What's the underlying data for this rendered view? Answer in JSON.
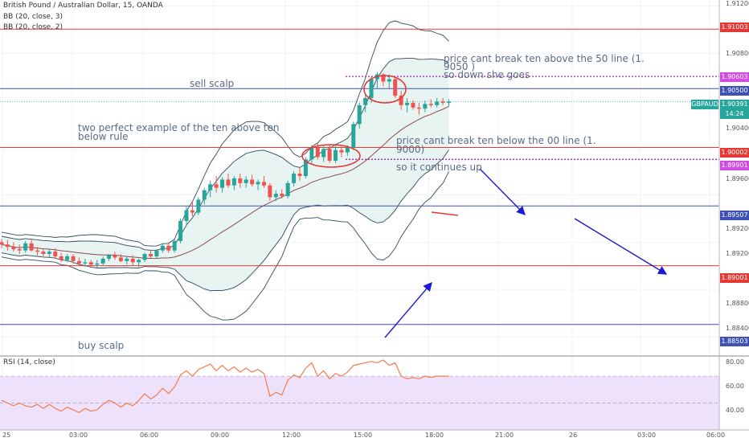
{
  "header": {
    "symbol_line": "British Pound / Australian Dollar, 15, OANDA",
    "bb1": "BB (20, close, 3)",
    "bb2": "BB (20, close, 2)",
    "rsi_label": "RSI (14, close)"
  },
  "annotations": {
    "sell_scalp": "sell scalp",
    "buy_scalp": "buy scalp",
    "ten_rule_1": "two perfect example of the ten above ten",
    "ten_rule_2": "below rule",
    "break50_1": "price cant break ten above the 50 line (1.",
    "break50_2": "9050 )",
    "break50_3": "so down she goes",
    "break00_1": "price cant break ten below the  00 line (1.",
    "break00_2": "9000)",
    "break00_3": "so it continues up"
  },
  "price_labels": {
    "symbol": "GBPAUD",
    "last": "1.90391",
    "countdown": "14:24",
    "l91003": "1.91003",
    "l90603": "1.90603",
    "l90500": "1.90500",
    "l90002": "1.90002",
    "l89901": "1.89901",
    "l89507": "1.89507",
    "l89001": "1.89001",
    "l88503": "1.88503"
  },
  "colors": {
    "bull": "#26a69a",
    "bear": "#ef5350",
    "red_line": "#e53935",
    "blue_line": "#3f51b5",
    "dotted": "#9c27b0",
    "arrow": "#1a1ad6",
    "rsi_line": "#f57c4a",
    "rsi_band": "#ede1fb",
    "bb_fill": "#e8f4f2"
  },
  "chart_data": {
    "type": "candlestick",
    "title": "British Pound / Australian Dollar, 15, OANDA",
    "y_axis_ticks": [
      "1.91200",
      "1.90800",
      "1.90400",
      "1.90000",
      "1.89600",
      "1.89200",
      "1.88800",
      "1.88400"
    ],
    "x_axis_ticks": [
      "25",
      "03:00",
      "06:00",
      "09:00",
      "12:00",
      "15:00",
      "18:00",
      "21:00",
      "26",
      "03:00",
      "06:00"
    ],
    "ylim": [
      1.8825,
      1.9125
    ],
    "horizontal_lines": {
      "red": [
        1.91003,
        1.90002,
        1.89001
      ],
      "blue": [
        1.905,
        1.89507,
        1.88503
      ],
      "dotted": [
        1.90603,
        1.89901
      ]
    },
    "last_price": 1.90391,
    "candles": [
      [
        1.892,
        1.8923,
        1.8915,
        1.8918
      ],
      [
        1.8918,
        1.8922,
        1.8913,
        1.8916
      ],
      [
        1.8916,
        1.892,
        1.8912,
        1.8914
      ],
      [
        1.8914,
        1.8918,
        1.891,
        1.8913
      ],
      [
        1.8913,
        1.8921,
        1.8911,
        1.8919
      ],
      [
        1.8919,
        1.8922,
        1.8912,
        1.8913
      ],
      [
        1.8913,
        1.8916,
        1.8909,
        1.8912
      ],
      [
        1.8912,
        1.8915,
        1.8908,
        1.891
      ],
      [
        1.891,
        1.8914,
        1.8907,
        1.8912
      ],
      [
        1.8912,
        1.8915,
        1.8906,
        1.8908
      ],
      [
        1.8908,
        1.8911,
        1.8903,
        1.8905
      ],
      [
        1.8905,
        1.891,
        1.8903,
        1.8908
      ],
      [
        1.8908,
        1.891,
        1.8902,
        1.8904
      ],
      [
        1.8904,
        1.8907,
        1.89,
        1.8902
      ],
      [
        1.8902,
        1.8906,
        1.8899,
        1.8903
      ],
      [
        1.8903,
        1.8905,
        1.8899,
        1.8901
      ],
      [
        1.8901,
        1.8905,
        1.8898,
        1.8902
      ],
      [
        1.8902,
        1.8908,
        1.89,
        1.8906
      ],
      [
        1.8906,
        1.891,
        1.8904,
        1.8909
      ],
      [
        1.8909,
        1.8912,
        1.8905,
        1.8907
      ],
      [
        1.8907,
        1.891,
        1.8903,
        1.8904
      ],
      [
        1.8904,
        1.8908,
        1.8901,
        1.8906
      ],
      [
        1.8906,
        1.8909,
        1.89,
        1.8903
      ],
      [
        1.8903,
        1.8906,
        1.8899,
        1.8905
      ],
      [
        1.8905,
        1.8911,
        1.8903,
        1.891
      ],
      [
        1.891,
        1.8913,
        1.8906,
        1.8908
      ],
      [
        1.8908,
        1.8914,
        1.8906,
        1.8913
      ],
      [
        1.8913,
        1.8919,
        1.8911,
        1.8917
      ],
      [
        1.8917,
        1.892,
        1.8911,
        1.8913
      ],
      [
        1.8913,
        1.8923,
        1.8911,
        1.8921
      ],
      [
        1.8921,
        1.894,
        1.8919,
        1.8938
      ],
      [
        1.8938,
        1.895,
        1.8934,
        1.8947
      ],
      [
        1.8947,
        1.8955,
        1.8942,
        1.8945
      ],
      [
        1.8945,
        1.8958,
        1.8943,
        1.8956
      ],
      [
        1.8956,
        1.8966,
        1.8952,
        1.8964
      ],
      [
        1.8964,
        1.8972,
        1.8958,
        1.8969
      ],
      [
        1.8969,
        1.8976,
        1.8962,
        1.8966
      ],
      [
        1.8966,
        1.8975,
        1.8962,
        1.8973
      ],
      [
        1.8973,
        1.8978,
        1.8966,
        1.8968
      ],
      [
        1.8968,
        1.8976,
        1.8964,
        1.8974
      ],
      [
        1.8974,
        1.8978,
        1.8966,
        1.897
      ],
      [
        1.897,
        1.8976,
        1.8966,
        1.8973
      ],
      [
        1.8973,
        1.8977,
        1.8967,
        1.8969
      ],
      [
        1.8969,
        1.8973,
        1.8964,
        1.8971
      ],
      [
        1.8971,
        1.8976,
        1.8966,
        1.8968
      ],
      [
        1.8968,
        1.897,
        1.8955,
        1.8958
      ],
      [
        1.8958,
        1.8964,
        1.8955,
        1.8961
      ],
      [
        1.8961,
        1.8965,
        1.8957,
        1.8959
      ],
      [
        1.8959,
        1.8972,
        1.8957,
        1.897
      ],
      [
        1.897,
        1.898,
        1.8967,
        1.8978
      ],
      [
        1.8978,
        1.8983,
        1.8972,
        1.8976
      ],
      [
        1.8976,
        1.8992,
        1.8974,
        1.899
      ],
      [
        1.899,
        1.9002,
        1.8986,
        1.9
      ],
      [
        1.9,
        1.9004,
        1.899,
        1.8992
      ],
      [
        1.8992,
        1.9002,
        1.8988,
        1.8999
      ],
      [
        1.8999,
        1.9003,
        1.8987,
        1.8989
      ],
      [
        1.8989,
        1.9002,
        1.8987,
        1.8998
      ],
      [
        1.8998,
        1.9001,
        1.8992,
        1.8996
      ],
      [
        1.8996,
        1.9002,
        1.8993,
        1.9
      ],
      [
        1.9,
        1.9022,
        1.8998,
        1.902
      ],
      [
        1.902,
        1.9038,
        1.9016,
        1.9036
      ],
      [
        1.9036,
        1.9046,
        1.903,
        1.9042
      ],
      [
        1.9042,
        1.906,
        1.9038,
        1.9058
      ],
      [
        1.9058,
        1.9064,
        1.905,
        1.9062
      ],
      [
        1.9062,
        1.9063,
        1.9052,
        1.9056
      ],
      [
        1.9056,
        1.9062,
        1.905,
        1.9058
      ],
      [
        1.9058,
        1.906,
        1.9042,
        1.9044
      ],
      [
        1.9044,
        1.9048,
        1.9032,
        1.9036
      ],
      [
        1.9036,
        1.9042,
        1.903,
        1.9038
      ],
      [
        1.9038,
        1.904,
        1.9032,
        1.9034
      ],
      [
        1.9034,
        1.9038,
        1.9028,
        1.9033
      ],
      [
        1.9033,
        1.904,
        1.903,
        1.9037
      ],
      [
        1.9037,
        1.9041,
        1.9034,
        1.9036
      ],
      [
        1.9036,
        1.9042,
        1.9034,
        1.9039
      ],
      [
        1.9039,
        1.9042,
        1.9036,
        1.9038
      ],
      [
        1.9038,
        1.9041,
        1.9035,
        1.9039
      ]
    ],
    "rsi": {
      "ylim": [
        30,
        85
      ],
      "ticks": [
        "80.00",
        "60.00",
        "40.00"
      ],
      "band": [
        30,
        70
      ],
      "values": [
        52,
        50,
        48,
        50,
        48,
        47,
        49,
        46,
        49,
        46,
        44,
        47,
        45,
        43,
        46,
        44,
        45,
        49,
        52,
        50,
        47,
        50,
        48,
        52,
        57,
        53,
        56,
        61,
        57,
        62,
        71,
        74,
        70,
        75,
        77,
        79,
        74,
        78,
        74,
        77,
        73,
        76,
        73,
        75,
        72,
        55,
        58,
        56,
        67,
        71,
        69,
        76,
        80,
        70,
        74,
        68,
        72,
        70,
        73,
        78,
        79,
        80,
        81,
        80,
        82,
        78,
        80,
        70,
        68,
        69,
        68,
        70,
        69,
        70,
        70,
        70
      ]
    }
  }
}
